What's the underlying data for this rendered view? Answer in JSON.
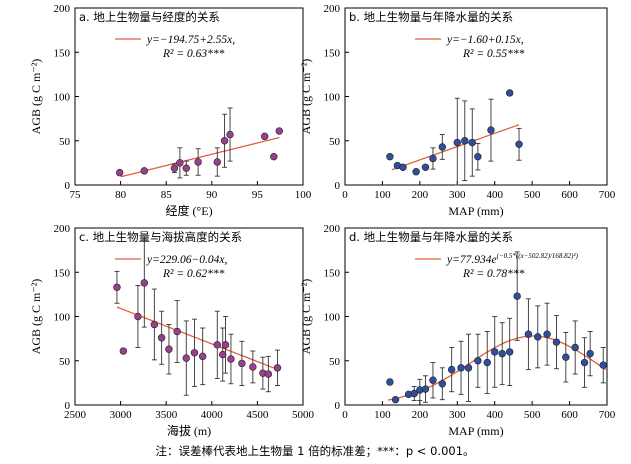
{
  "caption": "注：误差棒代表地上生物量 1 倍的标准差；***：p < 0.001。",
  "chart_data": [
    {
      "type": "scatter",
      "title": "a. 地上生物量与经度的关系",
      "xlabel": "经度 (°E)",
      "ylabel": "AGB (g C m⁻²)",
      "xlim": [
        75,
        100
      ],
      "ylim": [
        0,
        200
      ],
      "xticks": [
        75,
        80,
        85,
        90,
        95,
        100
      ],
      "yticks": [
        0,
        50,
        100,
        150,
        200
      ],
      "marker_color": "#9a3f8e",
      "fit_color": "#e0603a",
      "equation": "y=−194.75+2.55x,",
      "r2_label": "R² = 0.63***",
      "fit": {
        "kind": "linear",
        "a": -194.75,
        "b": 2.55,
        "x_range": [
          80,
          97.4
        ]
      },
      "points": [
        {
          "x": 79.9,
          "y": 14
        },
        {
          "x": 82.6,
          "y": 16
        },
        {
          "x": 85.9,
          "y": 19,
          "err": 5
        },
        {
          "x": 86.5,
          "y": 25,
          "err": 17
        },
        {
          "x": 87.2,
          "y": 19,
          "err": 8
        },
        {
          "x": 88.5,
          "y": 26,
          "err": 15
        },
        {
          "x": 90.6,
          "y": 26,
          "err": 16
        },
        {
          "x": 91.4,
          "y": 50,
          "err": 30
        },
        {
          "x": 92.0,
          "y": 57,
          "err": 30
        },
        {
          "x": 95.8,
          "y": 55
        },
        {
          "x": 96.8,
          "y": 32
        },
        {
          "x": 97.4,
          "y": 61
        }
      ]
    },
    {
      "type": "scatter",
      "title": "b. 地上生物量与年降水量的关系",
      "xlabel": "MAP (mm)",
      "ylabel": "AGB (g C m⁻²)",
      "xlim": [
        0,
        700
      ],
      "ylim": [
        0,
        200
      ],
      "xticks": [
        0,
        100,
        200,
        300,
        400,
        500,
        600,
        700
      ],
      "yticks": [
        0,
        50,
        100,
        150,
        200
      ],
      "marker_color": "#2f4f9e",
      "fit_color": "#e0603a",
      "equation": "y=−1.60+0.15x,",
      "r2_label": "R² = 0.55***",
      "fit": {
        "kind": "linear",
        "a": -1.6,
        "b": 0.15,
        "x_range": [
          125,
          465
        ]
      },
      "points": [
        {
          "x": 120,
          "y": 32
        },
        {
          "x": 140,
          "y": 22
        },
        {
          "x": 155,
          "y": 20
        },
        {
          "x": 190,
          "y": 15
        },
        {
          "x": 215,
          "y": 20
        },
        {
          "x": 235,
          "y": 30,
          "err": 12
        },
        {
          "x": 260,
          "y": 43,
          "err": 14
        },
        {
          "x": 300,
          "y": 48,
          "err": 50
        },
        {
          "x": 320,
          "y": 50,
          "err": 45
        },
        {
          "x": 340,
          "y": 48,
          "err": 38
        },
        {
          "x": 355,
          "y": 32,
          "err": 15
        },
        {
          "x": 390,
          "y": 62,
          "err": 35
        },
        {
          "x": 440,
          "y": 104
        },
        {
          "x": 465,
          "y": 46,
          "err": 18
        }
      ]
    },
    {
      "type": "scatter",
      "title": "c. 地上生物量与海拔高度的关系",
      "xlabel": "海拔 (m)",
      "ylabel": "AGB (g C m⁻²)",
      "xlim": [
        2500,
        5000
      ],
      "ylim": [
        0,
        200
      ],
      "xticks": [
        2500,
        3000,
        3500,
        4000,
        4500,
        5000
      ],
      "yticks": [
        0,
        50,
        100,
        150,
        200
      ],
      "marker_color": "#9a3f8e",
      "fit_color": "#e0603a",
      "equation": "y=229.06−0.04x,",
      "r2_label": "R² = 0.62***",
      "fit": {
        "kind": "linear",
        "a": 229.06,
        "b": -0.04,
        "x_range": [
          2960,
          4720
        ]
      },
      "points": [
        {
          "x": 2960,
          "y": 133,
          "err": 18
        },
        {
          "x": 3030,
          "y": 61
        },
        {
          "x": 3190,
          "y": 100,
          "err": 35
        },
        {
          "x": 3260,
          "y": 138,
          "err": 50
        },
        {
          "x": 3370,
          "y": 91,
          "err": 40
        },
        {
          "x": 3450,
          "y": 76,
          "err": 30
        },
        {
          "x": 3530,
          "y": 63,
          "err": 28
        },
        {
          "x": 3620,
          "y": 83,
          "err": 35
        },
        {
          "x": 3720,
          "y": 53,
          "err": 42
        },
        {
          "x": 3810,
          "y": 59,
          "err": 38
        },
        {
          "x": 3900,
          "y": 55,
          "err": 32
        },
        {
          "x": 4060,
          "y": 68,
          "err": 38
        },
        {
          "x": 4120,
          "y": 57,
          "err": 30
        },
        {
          "x": 4150,
          "y": 68,
          "err": 32
        },
        {
          "x": 4210,
          "y": 52,
          "err": 28
        },
        {
          "x": 4330,
          "y": 47,
          "err": 25
        },
        {
          "x": 4450,
          "y": 43,
          "err": 18
        },
        {
          "x": 4560,
          "y": 36,
          "err": 18
        },
        {
          "x": 4620,
          "y": 35,
          "err": 20
        },
        {
          "x": 4720,
          "y": 42,
          "err": 20
        }
      ]
    },
    {
      "type": "scatter",
      "title": "d. 地上生物量与年降水量的关系",
      "xlabel": "MAP (mm)",
      "ylabel": "AGB (g C m⁻²)",
      "xlim": [
        0,
        700
      ],
      "ylim": [
        0,
        200
      ],
      "xticks": [
        0,
        100,
        200,
        300,
        400,
        500,
        600,
        700
      ],
      "yticks": [
        0,
        50,
        100,
        150,
        200
      ],
      "marker_color": "#2f4f9e",
      "fit_color": "#e0603a",
      "equation": "y=77.934e",
      "equation_exponent": "(−0.5*((x−502.82)/168.82)²)",
      "r2_label": "R² = 0.78***",
      "fit": {
        "kind": "gauss",
        "a": 77.934,
        "mu": 502.82,
        "sigma": 168.82,
        "x_range": [
          115,
          700
        ]
      },
      "points": [
        {
          "x": 120,
          "y": 26
        },
        {
          "x": 135,
          "y": 6
        },
        {
          "x": 170,
          "y": 12
        },
        {
          "x": 185,
          "y": 13,
          "err": 8
        },
        {
          "x": 200,
          "y": 17,
          "err": 12
        },
        {
          "x": 215,
          "y": 18,
          "err": 15
        },
        {
          "x": 235,
          "y": 28,
          "err": 20
        },
        {
          "x": 260,
          "y": 24,
          "err": 18
        },
        {
          "x": 285,
          "y": 40,
          "err": 25
        },
        {
          "x": 310,
          "y": 42,
          "err": 30
        },
        {
          "x": 330,
          "y": 42,
          "err": 38
        },
        {
          "x": 355,
          "y": 50,
          "err": 30
        },
        {
          "x": 380,
          "y": 48,
          "err": 35
        },
        {
          "x": 400,
          "y": 60,
          "err": 40
        },
        {
          "x": 420,
          "y": 58,
          "err": 35
        },
        {
          "x": 440,
          "y": 60,
          "err": 38
        },
        {
          "x": 460,
          "y": 123,
          "err": 50
        },
        {
          "x": 490,
          "y": 80,
          "err": 40
        },
        {
          "x": 515,
          "y": 77,
          "err": 35
        },
        {
          "x": 540,
          "y": 80,
          "err": 35
        },
        {
          "x": 565,
          "y": 71,
          "err": 30
        },
        {
          "x": 590,
          "y": 54,
          "err": 28
        },
        {
          "x": 615,
          "y": 65,
          "err": 30
        },
        {
          "x": 640,
          "y": 48,
          "err": 28
        },
        {
          "x": 655,
          "y": 58,
          "err": 25
        },
        {
          "x": 690,
          "y": 45,
          "err": 20
        }
      ]
    }
  ]
}
